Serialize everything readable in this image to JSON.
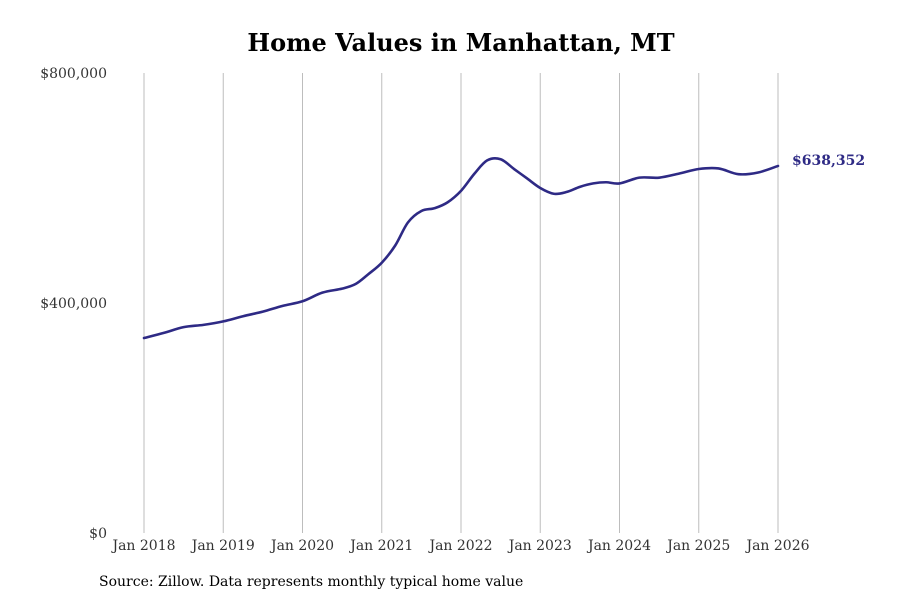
{
  "colors": {
    "line": "#2e2a85",
    "grid": "#bdbdbd",
    "text": "#333333"
  },
  "chart_data": {
    "type": "line",
    "title": "Home Values in Manhattan, MT",
    "xlabel": "",
    "ylabel": "",
    "ylim": [
      0,
      800000
    ],
    "yticks": [
      0,
      400000,
      800000
    ],
    "ytick_labels": [
      "$0",
      "$400,000",
      "$800,000"
    ],
    "xticks": [
      2018,
      2019,
      2020,
      2021,
      2022,
      2023,
      2024,
      2025,
      2026
    ],
    "xtick_labels": [
      "Jan 2018",
      "Jan 2019",
      "Jan 2020",
      "Jan 2021",
      "Jan 2022",
      "Jan 2023",
      "Jan 2024",
      "Jan 2025",
      "Jan 2026"
    ],
    "grid": "vertical",
    "series": [
      {
        "name": "Typical home value",
        "end_label": "$638,352",
        "points": [
          [
            2018.0,
            339000
          ],
          [
            2018.25,
            348000
          ],
          [
            2018.5,
            358000
          ],
          [
            2018.75,
            362000
          ],
          [
            2019.0,
            368000
          ],
          [
            2019.25,
            377000
          ],
          [
            2019.5,
            385000
          ],
          [
            2019.75,
            395000
          ],
          [
            2020.0,
            403000
          ],
          [
            2020.25,
            418000
          ],
          [
            2020.5,
            425000
          ],
          [
            2020.67,
            433000
          ],
          [
            2020.83,
            450000
          ],
          [
            2021.0,
            470000
          ],
          [
            2021.17,
            500000
          ],
          [
            2021.33,
            540000
          ],
          [
            2021.5,
            560000
          ],
          [
            2021.67,
            565000
          ],
          [
            2021.83,
            575000
          ],
          [
            2022.0,
            595000
          ],
          [
            2022.17,
            625000
          ],
          [
            2022.33,
            648000
          ],
          [
            2022.5,
            650000
          ],
          [
            2022.67,
            633000
          ],
          [
            2022.83,
            617000
          ],
          [
            2023.0,
            600000
          ],
          [
            2023.17,
            590000
          ],
          [
            2023.33,
            593000
          ],
          [
            2023.5,
            602000
          ],
          [
            2023.67,
            608000
          ],
          [
            2023.83,
            610000
          ],
          [
            2024.0,
            608000
          ],
          [
            2024.25,
            618000
          ],
          [
            2024.5,
            618000
          ],
          [
            2024.75,
            625000
          ],
          [
            2025.0,
            633000
          ],
          [
            2025.25,
            634000
          ],
          [
            2025.5,
            624000
          ],
          [
            2025.75,
            627000
          ],
          [
            2026.0,
            638352
          ]
        ]
      }
    ]
  },
  "source": "Source: Zillow. Data represents monthly typical home value"
}
